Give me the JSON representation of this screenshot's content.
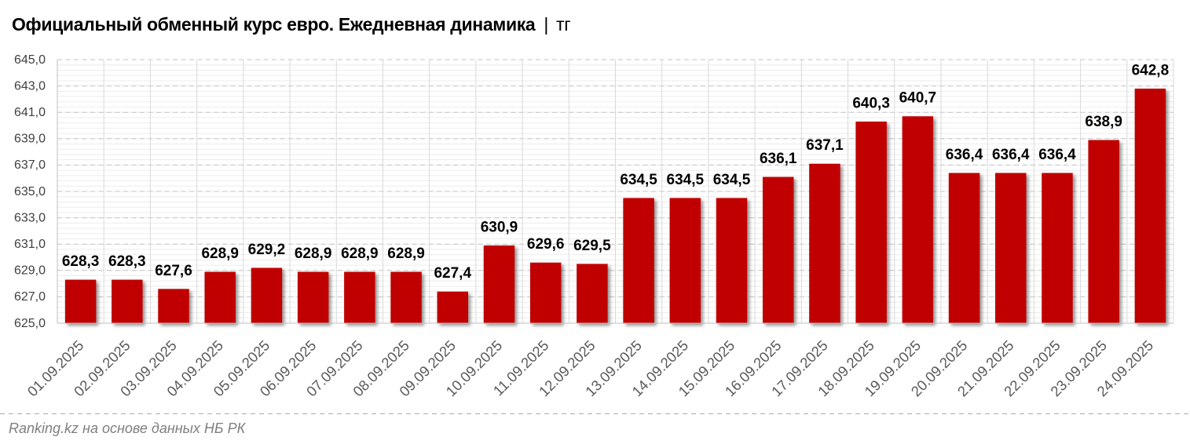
{
  "title": {
    "main": "Официальный обменный курс евро. Ежедневная динамика",
    "separator": "|",
    "unit": "тг"
  },
  "footer": {
    "source": "Ranking.kz на основе данных НБ РК"
  },
  "chart_data": {
    "type": "bar",
    "title": "Официальный обменный курс евро. Ежедневная динамика | тг",
    "categories": [
      "01.09.2025",
      "02.09.2025",
      "03.09.2025",
      "04.09.2025",
      "05.09.2025",
      "06.09.2025",
      "07.09.2025",
      "08.09.2025",
      "09.09.2025",
      "10.09.2025",
      "11.09.2025",
      "12.09.2025",
      "13.09.2025",
      "14.09.2025",
      "15.09.2025",
      "16.09.2025",
      "17.09.2025",
      "18.09.2025",
      "19.09.2025",
      "20.09.2025",
      "21.09.2025",
      "22.09.2025",
      "23.09.2025",
      "24.09.2025"
    ],
    "values": [
      628.3,
      628.3,
      627.6,
      628.9,
      629.2,
      628.9,
      628.9,
      628.9,
      627.4,
      630.9,
      629.6,
      629.5,
      634.5,
      634.5,
      634.5,
      636.1,
      637.1,
      640.3,
      640.7,
      636.4,
      636.4,
      636.4,
      638.9,
      642.8
    ],
    "xlabel": "",
    "ylabel": "",
    "ylim": [
      625.0,
      645.0
    ],
    "y_major_step": 2.0,
    "y_minor_step": 0.4,
    "decimal_separator": ",",
    "grid": true,
    "legend": false,
    "colors": {
      "bar": "#c00000",
      "value_label": "#000000",
      "y_tick_label": "#404040",
      "x_tick_label": "#595959",
      "major_gridline": "#c3c3c3",
      "minor_gridline": "#ededed",
      "v_gridline": "#d9d9d9",
      "axis_line": "#bfbfbf"
    }
  }
}
